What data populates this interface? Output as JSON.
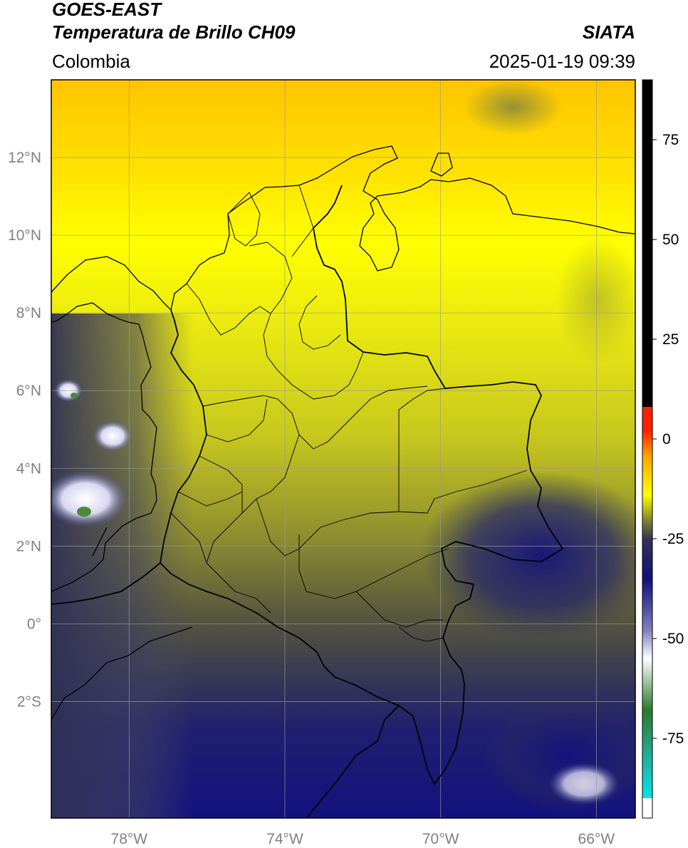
{
  "header": {
    "satellite": "GOES-EAST",
    "product": "Temperatura de Brillo CH09",
    "region": "Colombia",
    "agency": "SIATA",
    "timestamp": "2025-01-19 09:39"
  },
  "map": {
    "extent": {
      "lon_min": -80,
      "lon_max": -65,
      "lat_min": -5,
      "lat_max": 14
    },
    "lat_ticks": [
      {
        "value": 12,
        "label": "12°N"
      },
      {
        "value": 10,
        "label": "10°N"
      },
      {
        "value": 8,
        "label": "8°N"
      },
      {
        "value": 6,
        "label": "6°N"
      },
      {
        "value": 4,
        "label": "4°N"
      },
      {
        "value": 2,
        "label": "2°N"
      },
      {
        "value": 0,
        "label": "0°"
      },
      {
        "value": -2,
        "label": "2°S"
      }
    ],
    "lon_ticks": [
      {
        "value": -78,
        "label": "78°W"
      },
      {
        "value": -74,
        "label": "74°W"
      },
      {
        "value": -70,
        "label": "70°W"
      },
      {
        "value": -66,
        "label": "66°W"
      }
    ],
    "grid": true
  },
  "colorbar": {
    "range": [
      -95,
      90
    ],
    "ticks": [
      {
        "value": 75,
        "label": "75"
      },
      {
        "value": 50,
        "label": "50"
      },
      {
        "value": 25,
        "label": "25"
      },
      {
        "value": 0,
        "label": "0"
      },
      {
        "value": -25,
        "label": "-25"
      },
      {
        "value": -50,
        "label": "-50"
      },
      {
        "value": -75,
        "label": "-75"
      }
    ],
    "colors": {
      "above_8": "#000000",
      "red": "#ff2200",
      "orange": "#ffa000",
      "yellow": "#ffff00",
      "olive": "#8a8a2a",
      "darkgray": "#343455",
      "navy": "#10107a",
      "white": "#ffffff",
      "green": "#2a7a2a",
      "teal": "#20b0a0",
      "cyan": "#00e5e5"
    }
  }
}
